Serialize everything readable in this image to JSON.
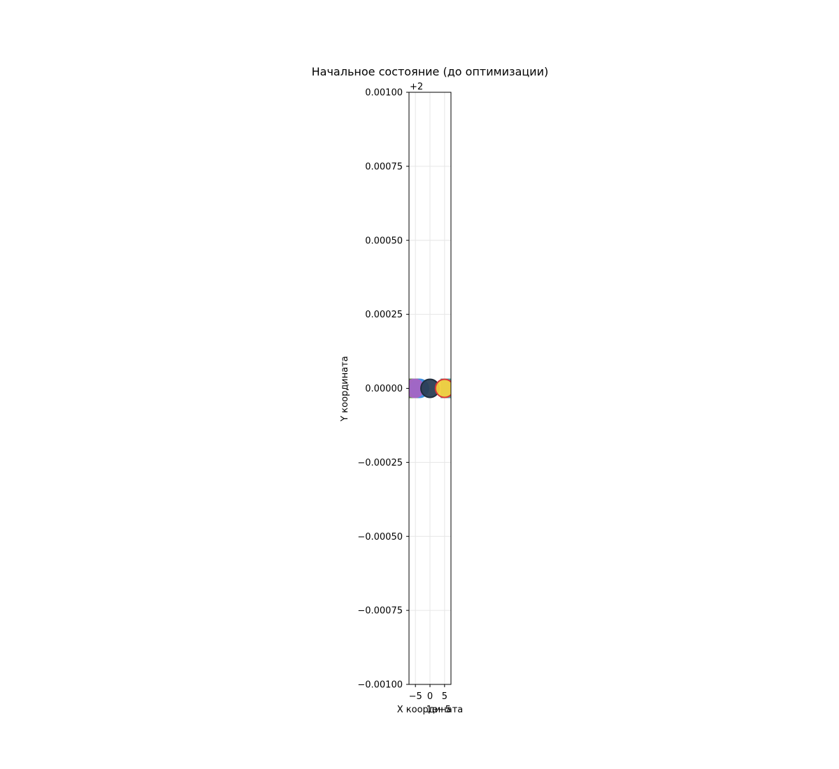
{
  "chart_data": {
    "type": "scatter",
    "title": "Начальное состояние (до оптимизации)",
    "xlabel": "X координата",
    "ylabel": "Y координата",
    "xlim": [
      -7.2,
      7.2
    ],
    "ylim": [
      1.999,
      2.001
    ],
    "y_offset_text": "+2",
    "x_offset_text": "1e−5",
    "x_ticks": [
      -5,
      0,
      5
    ],
    "x_tick_labels": [
      "−5",
      "0",
      "5"
    ],
    "y_ticks": [
      0.001,
      0.00075,
      0.0005,
      0.00025,
      0.0,
      -0.00025,
      -0.0005,
      -0.00075,
      -0.001
    ],
    "y_tick_labels": [
      "0.00100",
      "0.00075",
      "0.00050",
      "0.00025",
      "0.00000",
      "−0.00025",
      "−0.00050",
      "−0.00075",
      "−0.00100"
    ],
    "grid": true,
    "points": [
      {
        "x": -7.0,
        "y": 2.0,
        "color": "#6b8e4e",
        "shape": "square",
        "edge": "#6b8e4e"
      },
      {
        "x": -3.6,
        "y": 2.0,
        "color": "#3d8fe0",
        "shape": "circle",
        "edge": "#3d8fe0"
      },
      {
        "x": -5.2,
        "y": 2.0,
        "color": "#a565c4",
        "shape": "circle",
        "edge": "#a565c4"
      },
      {
        "x": 0.0,
        "y": 2.0,
        "color": "#2b3e55",
        "shape": "circle",
        "edge": "#1f2d3d"
      },
      {
        "x": 7.0,
        "y": 2.0,
        "color": "#4fa6a0",
        "shape": "square",
        "edge": "#4fa6a0"
      },
      {
        "x": 5.0,
        "y": 2.0,
        "color": "#f4d03f",
        "shape": "circle",
        "edge": "#d9383a"
      }
    ]
  }
}
